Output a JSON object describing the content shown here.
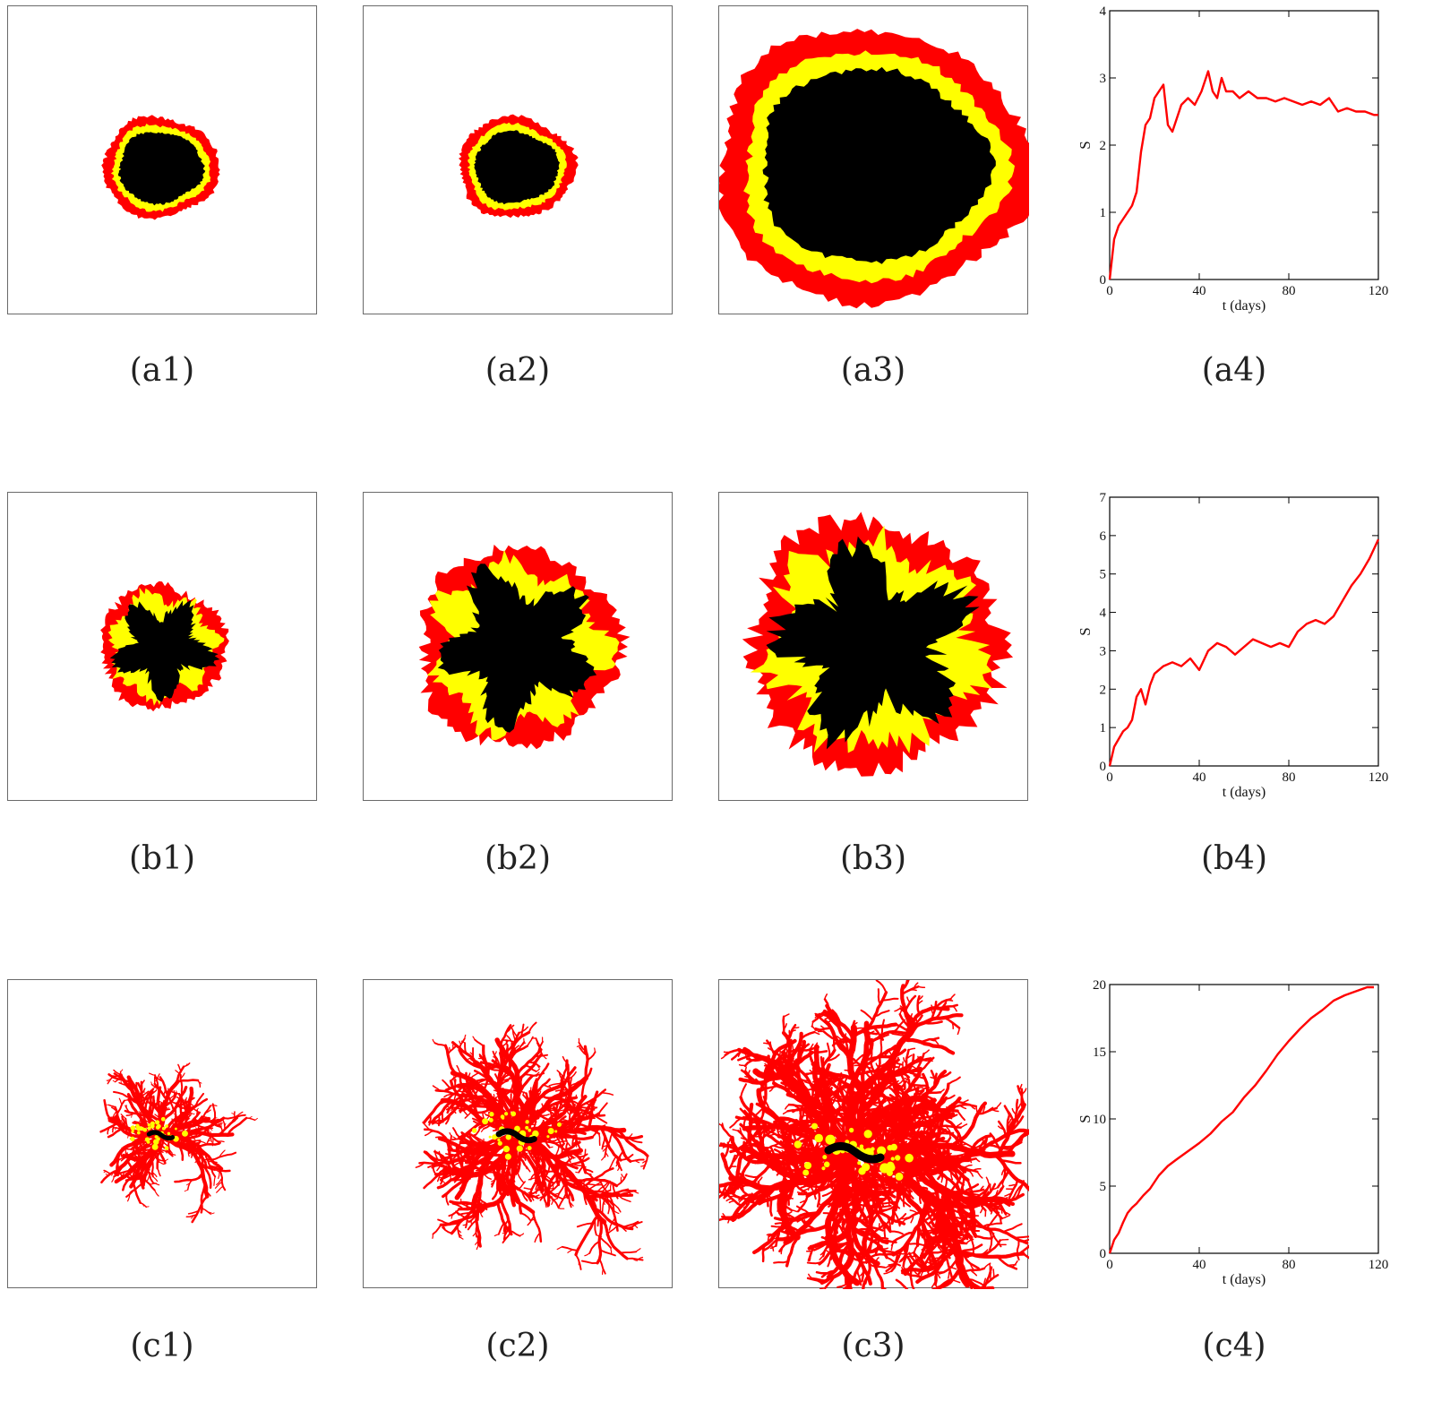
{
  "colors": {
    "necrotic": "#000000",
    "quiescent": "#ffff00",
    "proliferative": "#ff0000",
    "curve": "#ff0000",
    "frame": "#000000"
  },
  "rows": [
    {
      "captions": [
        "(a1)",
        "(a2)",
        "(a3)",
        "(a4)"
      ],
      "tumors": [
        {
          "shape": "compact",
          "scale": 0.37,
          "roughness": 0.035
        },
        {
          "shape": "compact",
          "scale": 0.37,
          "roughness": 0.035
        },
        {
          "shape": "compact",
          "scale": 1.0,
          "roughness": 0.03
        }
      ]
    },
    {
      "captions": [
        "(b1)",
        "(b2)",
        "(b3)",
        "(b4)"
      ],
      "tumors": [
        {
          "shape": "lobed",
          "scale": 0.5,
          "roughness": 0.07
        },
        {
          "shape": "lobed",
          "scale": 0.8,
          "roughness": 0.07
        },
        {
          "shape": "lobed",
          "scale": 1.0,
          "roughness": 0.09
        }
      ]
    },
    {
      "captions": [
        "(c1)",
        "(c2)",
        "(c3)",
        "(c4)"
      ],
      "tumors": [
        {
          "shape": "dendritic",
          "scale": 0.45
        },
        {
          "shape": "dendritic",
          "scale": 0.68
        },
        {
          "shape": "dendritic",
          "scale": 1.0
        }
      ]
    }
  ],
  "chart_data": [
    {
      "type": "line",
      "xlabel": "t (days)",
      "ylabel": "S",
      "xlim": [
        0,
        120
      ],
      "ylim": [
        0,
        4
      ],
      "xticks": [
        0,
        40,
        80,
        120
      ],
      "yticks": [
        0,
        1,
        2,
        3,
        4
      ],
      "series": [
        {
          "x": [
            0,
            2,
            4,
            6,
            8,
            10,
            12,
            14,
            16,
            18,
            20,
            22,
            24,
            26,
            28,
            30,
            32,
            35,
            38,
            41,
            44,
            46,
            48,
            50,
            52,
            55,
            58,
            62,
            66,
            70,
            74,
            78,
            82,
            86,
            90,
            94,
            98,
            102,
            106,
            110,
            114,
            118,
            120
          ],
          "y": [
            0,
            0.6,
            0.8,
            0.9,
            1.0,
            1.1,
            1.3,
            1.9,
            2.3,
            2.4,
            2.7,
            2.8,
            2.9,
            2.3,
            2.2,
            2.4,
            2.6,
            2.7,
            2.6,
            2.8,
            3.1,
            2.8,
            2.7,
            3.0,
            2.8,
            2.8,
            2.7,
            2.8,
            2.7,
            2.7,
            2.65,
            2.7,
            2.65,
            2.6,
            2.65,
            2.6,
            2.7,
            2.5,
            2.55,
            2.5,
            2.5,
            2.45,
            2.45
          ]
        }
      ]
    },
    {
      "type": "line",
      "xlabel": "t (days)",
      "ylabel": "S",
      "xlim": [
        0,
        120
      ],
      "ylim": [
        0,
        7
      ],
      "xticks": [
        0,
        40,
        80,
        120
      ],
      "yticks": [
        0,
        1,
        2,
        3,
        4,
        5,
        6,
        7
      ],
      "series": [
        {
          "x": [
            0,
            2,
            4,
            6,
            8,
            10,
            12,
            14,
            16,
            18,
            20,
            24,
            28,
            32,
            36,
            40,
            44,
            48,
            52,
            56,
            60,
            64,
            68,
            72,
            76,
            80,
            84,
            88,
            92,
            96,
            100,
            104,
            108,
            112,
            116,
            120
          ],
          "y": [
            0,
            0.5,
            0.7,
            0.9,
            1.0,
            1.2,
            1.8,
            2.0,
            1.6,
            2.1,
            2.4,
            2.6,
            2.7,
            2.6,
            2.8,
            2.5,
            3.0,
            3.2,
            3.1,
            2.9,
            3.1,
            3.3,
            3.2,
            3.1,
            3.2,
            3.1,
            3.5,
            3.7,
            3.8,
            3.7,
            3.9,
            4.3,
            4.7,
            5.0,
            5.4,
            5.9
          ]
        }
      ]
    },
    {
      "type": "line",
      "xlabel": "t (days)",
      "ylabel": "S",
      "xlim": [
        0,
        120
      ],
      "ylim": [
        0,
        20
      ],
      "xticks": [
        0,
        40,
        80,
        120
      ],
      "yticks": [
        0,
        5,
        10,
        15,
        20
      ],
      "series": [
        {
          "x": [
            0,
            2,
            4,
            6,
            8,
            10,
            12,
            15,
            18,
            22,
            26,
            30,
            35,
            40,
            45,
            50,
            55,
            60,
            65,
            70,
            75,
            80,
            85,
            90,
            95,
            100,
            105,
            110,
            115,
            118
          ],
          "y": [
            0,
            1.0,
            1.5,
            2.3,
            3.0,
            3.4,
            3.7,
            4.3,
            4.8,
            5.8,
            6.5,
            7.0,
            7.6,
            8.2,
            8.9,
            9.8,
            10.5,
            11.6,
            12.5,
            13.6,
            14.8,
            15.8,
            16.7,
            17.5,
            18.1,
            18.8,
            19.2,
            19.5,
            19.8,
            19.8
          ]
        }
      ]
    }
  ]
}
